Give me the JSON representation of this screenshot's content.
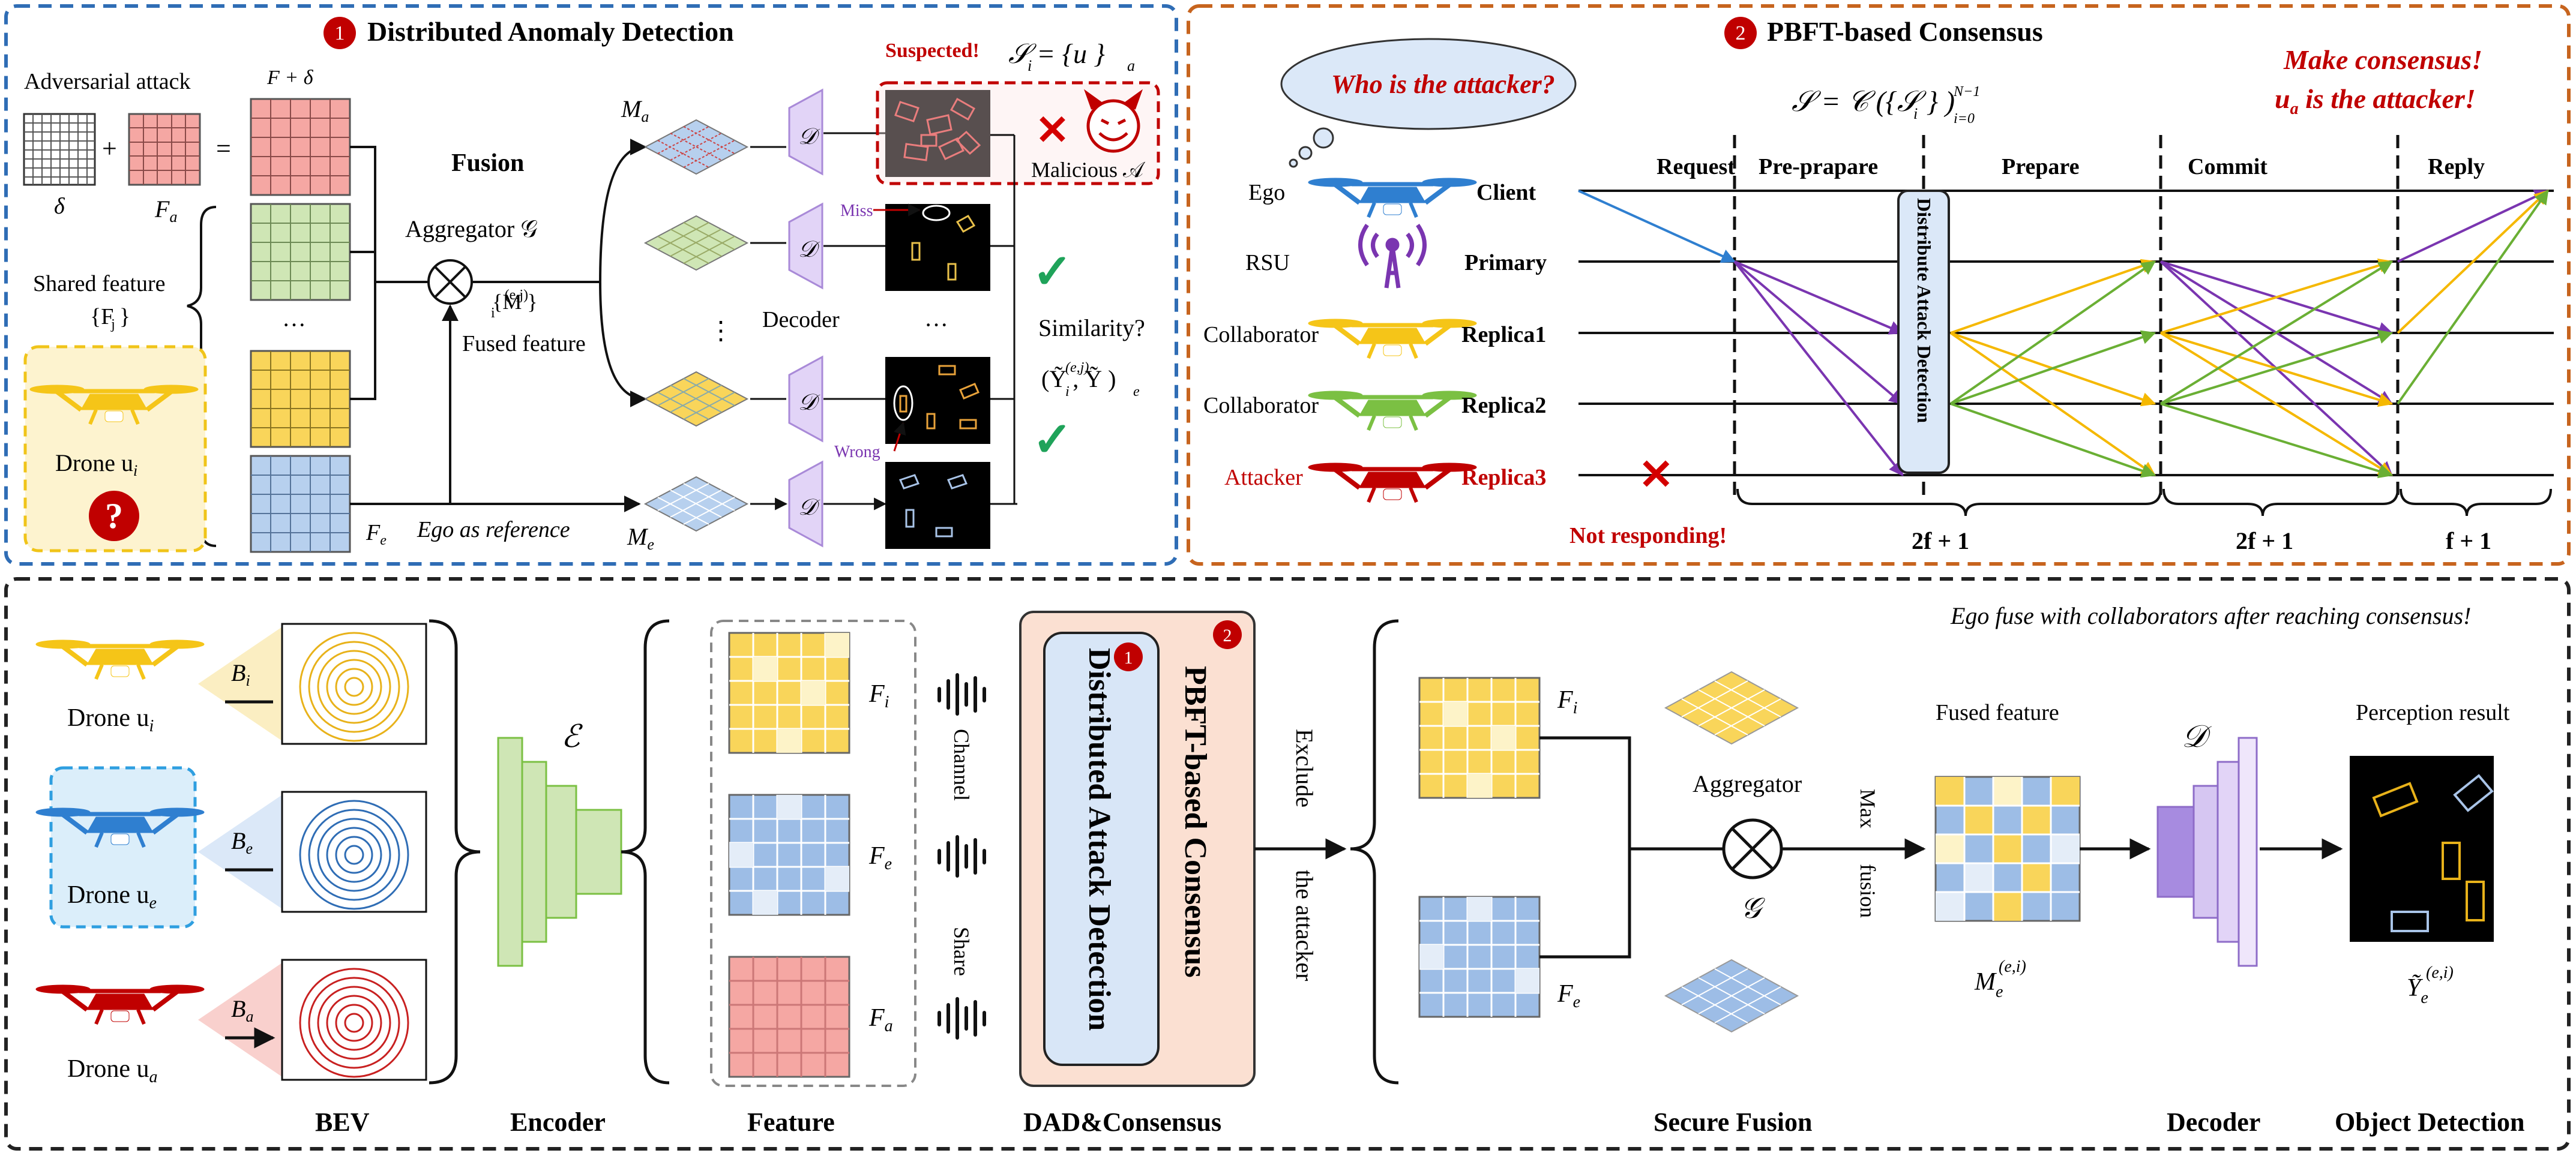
{
  "colors": {
    "blue_dash": "#2f6db5",
    "orange_dash": "#c7641e",
    "black_dash": "#222222",
    "red": "#c00000",
    "yellow": "#f5c518",
    "green": "#7bc043",
    "purple": "#7a35b0",
    "blue_arrow": "#2f7fd0",
    "salmon": "#f4a09a",
    "light_blue": "#b7d0ee",
    "light_green": "#cfe6b5"
  },
  "panel1": {
    "badge": "1",
    "title": "Distributed Anomaly Detection",
    "adversarial_attack": "Adversarial attack",
    "delta": "δ",
    "fa_label": "F",
    "fa_sub": "a",
    "fa_plus_delta": "F + δ",
    "plus": "+",
    "equals": "=",
    "shared_feature": "Shared feature",
    "shared_set": "{F }",
    "shared_set_sub": "j",
    "drone_label": "Drone u",
    "drone_sub": "i",
    "question": "?",
    "fusion": "Fusion",
    "aggregator": "Aggregator 𝒢",
    "fused_set": "{M }",
    "fused_set_sup": "(e,j)",
    "fused_set_sub": "i",
    "fused_feature": "Fused feature",
    "ego_ref": "Ego as reference",
    "fe_label": "F",
    "fe_sub": "e",
    "ma_label": "M",
    "ma_sub": "a",
    "me_label": "M",
    "me_sub": "e",
    "dots": "···",
    "vdots": "⋮",
    "decoder": "Decoder",
    "decoder_symbol": "𝒟",
    "miss": "Miss",
    "wrong": "Wrong",
    "suspected": "Suspected!",
    "suspect_set": "𝒮 = {u }",
    "suspect_set_sub_i": "i",
    "suspect_set_sub_a": "a",
    "malicious": "Malicious 𝒜",
    "similarity": "Similarity?",
    "similarity_formula": "(Ỹ , Ỹ )",
    "similarity_sup": "(e,j)",
    "similarity_sub_i": "i",
    "similarity_sub_e": "e",
    "cross": "✕",
    "check": "✓"
  },
  "panel2": {
    "badge": "2",
    "title": "PBFT-based Consensus",
    "thought": "Who is the attacker?",
    "formula": "𝒮 = 𝒞 ({𝒮 }    )",
    "formula_sub": "i",
    "formula_range": "N−1",
    "formula_start": "i=0",
    "make_consensus": "Make consensus!",
    "attacker_line_prefix": "u",
    "attacker_line_sub": "a",
    "attacker_line_suffix": " is the attacker!",
    "phases": [
      "Request",
      "Pre-prapare",
      "Prepare",
      "Commit",
      "Reply"
    ],
    "roles": [
      {
        "left": "Ego",
        "right": "Client"
      },
      {
        "left": "RSU",
        "right": "Primary"
      },
      {
        "left": "Collaborator",
        "right": "Replica1"
      },
      {
        "left": "Collaborator",
        "right": "Replica2"
      },
      {
        "left": "Attacker",
        "right": "Replica3"
      }
    ],
    "distribute_box": "Distribute Attack Detection",
    "not_responding": "Not responding!",
    "brace_labels": [
      "2f + 1",
      "2f + 1",
      "f + 1"
    ],
    "cross": "✕"
  },
  "panel3": {
    "note": "Ego fuse with collaborators after reaching consensus!",
    "drones": [
      {
        "label": "Drone u",
        "sub": "i",
        "bev": "B",
        "bev_sub": "i"
      },
      {
        "label": "Drone u",
        "sub": "e",
        "bev": "B",
        "bev_sub": "e"
      },
      {
        "label": "Drone u",
        "sub": "a",
        "bev": "B",
        "bev_sub": "a"
      }
    ],
    "encoder_symbol": "ℰ",
    "features": [
      {
        "label": "F",
        "sub": "i"
      },
      {
        "label": "F",
        "sub": "e"
      },
      {
        "label": "F",
        "sub": "a"
      }
    ],
    "channel": "Channel",
    "share": "Share",
    "dad_badge1": "1",
    "dad_badge2": "2",
    "dad_inner": "Distributed Attack Detection",
    "dad_outer": "PBFT-based Consensus",
    "exclude": "Exclude",
    "the_attacker": "the attacker",
    "aggregator": "Aggregator",
    "aggregator_symbol": "𝒢",
    "max": "Max",
    "fusion": "fusion",
    "fused_feature": "Fused feature",
    "fused_label": "M",
    "fused_sup": "(e,i)",
    "fused_sub": "e",
    "decoder_symbol": "𝒟",
    "perception_result": "Perception result",
    "result_label": "Ỹ",
    "result_sup": "(e,i)",
    "result_sub": "e",
    "sf_fi": "F",
    "sf_fi_sub": "i",
    "sf_fe": "F",
    "sf_fe_sub": "e",
    "bottom_labels": [
      "BEV",
      "Encoder",
      "Feature",
      "DAD&Consensus",
      "Secure Fusion",
      "Decoder",
      "Object Detection"
    ]
  }
}
